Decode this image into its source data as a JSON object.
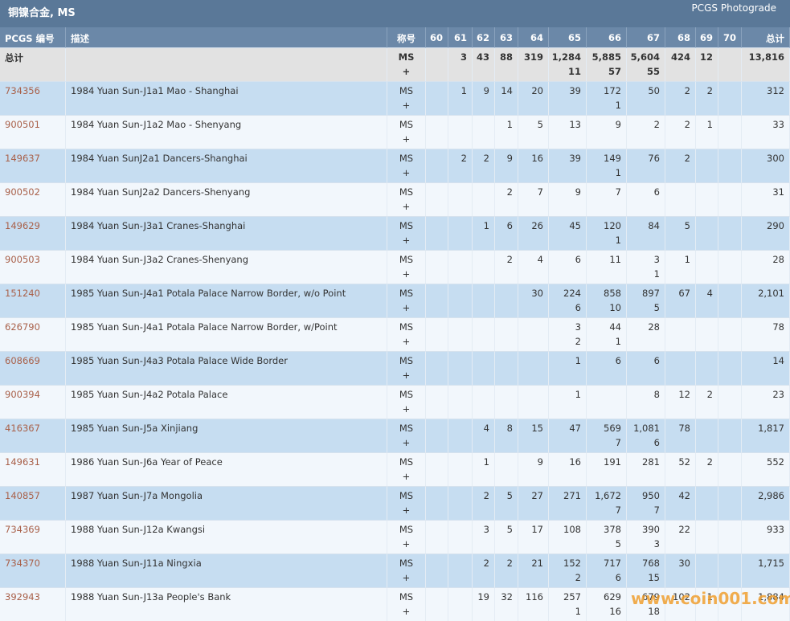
{
  "header": {
    "title": "铜镍合金, MS",
    "link": "PCGS Photograde"
  },
  "table": {
    "columns": [
      "PCGS 编号",
      "描述",
      "称号",
      "60",
      "61",
      "62",
      "63",
      "64",
      "65",
      "66",
      "67",
      "68",
      "69",
      "70",
      "总计"
    ],
    "total_row": [
      "总计",
      null,
      [
        "MS",
        "+"
      ],
      null,
      "3",
      "43",
      "88",
      "319",
      [
        "1,284",
        "11"
      ],
      [
        "5,885",
        "57"
      ],
      [
        "5,604",
        "55"
      ],
      "424",
      "12",
      null,
      "13,816"
    ],
    "rows": [
      [
        "734356",
        "1984 Yuan Sun-J1a1 Mao - Shanghai",
        [
          "MS",
          "+"
        ],
        null,
        "1",
        "9",
        "14",
        "20",
        "39",
        [
          "172",
          "1"
        ],
        "50",
        "2",
        "2",
        null,
        "312"
      ],
      [
        "900501",
        "1984 Yuan Sun-J1a2 Mao - Shenyang",
        [
          "MS",
          "+"
        ],
        null,
        null,
        null,
        "1",
        "5",
        "13",
        "9",
        "2",
        "2",
        "1",
        null,
        "33"
      ],
      [
        "149637",
        "1984 Yuan SunJ2a1 Dancers-Shanghai",
        [
          "MS",
          "+"
        ],
        null,
        "2",
        "2",
        "9",
        "16",
        "39",
        [
          "149",
          "1"
        ],
        "76",
        "2",
        null,
        null,
        "300"
      ],
      [
        "900502",
        "1984 Yuan SunJ2a2 Dancers-Shenyang",
        [
          "MS",
          "+"
        ],
        null,
        null,
        null,
        "2",
        "7",
        "9",
        "7",
        "6",
        null,
        null,
        null,
        "31"
      ],
      [
        "149629",
        "1984 Yuan Sun-J3a1 Cranes-Shanghai",
        [
          "MS",
          "+"
        ],
        null,
        null,
        "1",
        "6",
        "26",
        "45",
        [
          "120",
          "1"
        ],
        "84",
        "5",
        null,
        null,
        "290"
      ],
      [
        "900503",
        "1984 Yuan Sun-J3a2 Cranes-Shenyang",
        [
          "MS",
          "+"
        ],
        null,
        null,
        null,
        "2",
        "4",
        "6",
        "11",
        [
          "3",
          "1"
        ],
        "1",
        null,
        null,
        "28"
      ],
      [
        "151240",
        "1985 Yuan Sun-J4a1 Potala Palace Narrow Border, w/o Point",
        [
          "MS",
          "+"
        ],
        null,
        null,
        null,
        null,
        "30",
        [
          "224",
          "6"
        ],
        [
          "858",
          "10"
        ],
        [
          "897",
          "5"
        ],
        "67",
        "4",
        null,
        "2,101"
      ],
      [
        "626790",
        "1985 Yuan Sun-J4a1 Potala Palace Narrow Border, w/Point",
        [
          "MS",
          "+"
        ],
        null,
        null,
        null,
        null,
        null,
        [
          "3",
          "2"
        ],
        [
          "44",
          "1"
        ],
        "28",
        null,
        null,
        null,
        "78"
      ],
      [
        "608669",
        "1985 Yuan Sun-J4a3 Potala Palace Wide Border",
        [
          "MS",
          "+"
        ],
        null,
        null,
        null,
        null,
        null,
        "1",
        "6",
        "6",
        null,
        null,
        null,
        "14"
      ],
      [
        "900394",
        "1985 Yuan Sun-J4a2 Potala Palace",
        [
          "MS",
          "+"
        ],
        null,
        null,
        null,
        null,
        null,
        "1",
        null,
        "8",
        "12",
        "2",
        null,
        "23"
      ],
      [
        "416367",
        "1985 Yuan Sun-J5a Xinjiang",
        [
          "MS",
          "+"
        ],
        null,
        null,
        "4",
        "8",
        "15",
        "47",
        [
          "569",
          "7"
        ],
        [
          "1,081",
          "6"
        ],
        "78",
        null,
        null,
        "1,817"
      ],
      [
        "149631",
        "1986 Yuan Sun-J6a Year of Peace",
        [
          "MS",
          "+"
        ],
        null,
        null,
        "1",
        null,
        "9",
        "16",
        "191",
        "281",
        "52",
        "2",
        null,
        "552"
      ],
      [
        "140857",
        "1987 Yuan Sun-J7a Mongolia",
        [
          "MS",
          "+"
        ],
        null,
        null,
        "2",
        "5",
        "27",
        "271",
        [
          "1,672",
          "7"
        ],
        [
          "950",
          "7"
        ],
        "42",
        null,
        null,
        "2,986"
      ],
      [
        "734369",
        "1988 Yuan Sun-J12a Kwangsi",
        [
          "MS",
          "+"
        ],
        null,
        null,
        "3",
        "5",
        "17",
        "108",
        [
          "378",
          "5"
        ],
        [
          "390",
          "3"
        ],
        "22",
        null,
        null,
        "933"
      ],
      [
        "734370",
        "1988 Yuan Sun-J11a Ningxia",
        [
          "MS",
          "+"
        ],
        null,
        null,
        "2",
        "2",
        "21",
        [
          "152",
          "2"
        ],
        [
          "717",
          "6"
        ],
        [
          "768",
          "15"
        ],
        "30",
        null,
        null,
        "1,715"
      ],
      [
        "392943",
        "1988 Yuan Sun-J13a People's Bank",
        [
          "MS",
          "+"
        ],
        null,
        null,
        "19",
        "32",
        "116",
        [
          "257",
          "1"
        ],
        [
          "629",
          "16"
        ],
        [
          "679",
          "18"
        ],
        "102",
        "1",
        null,
        "1,884"
      ]
    ]
  },
  "watermark": "www.coin001.com"
}
